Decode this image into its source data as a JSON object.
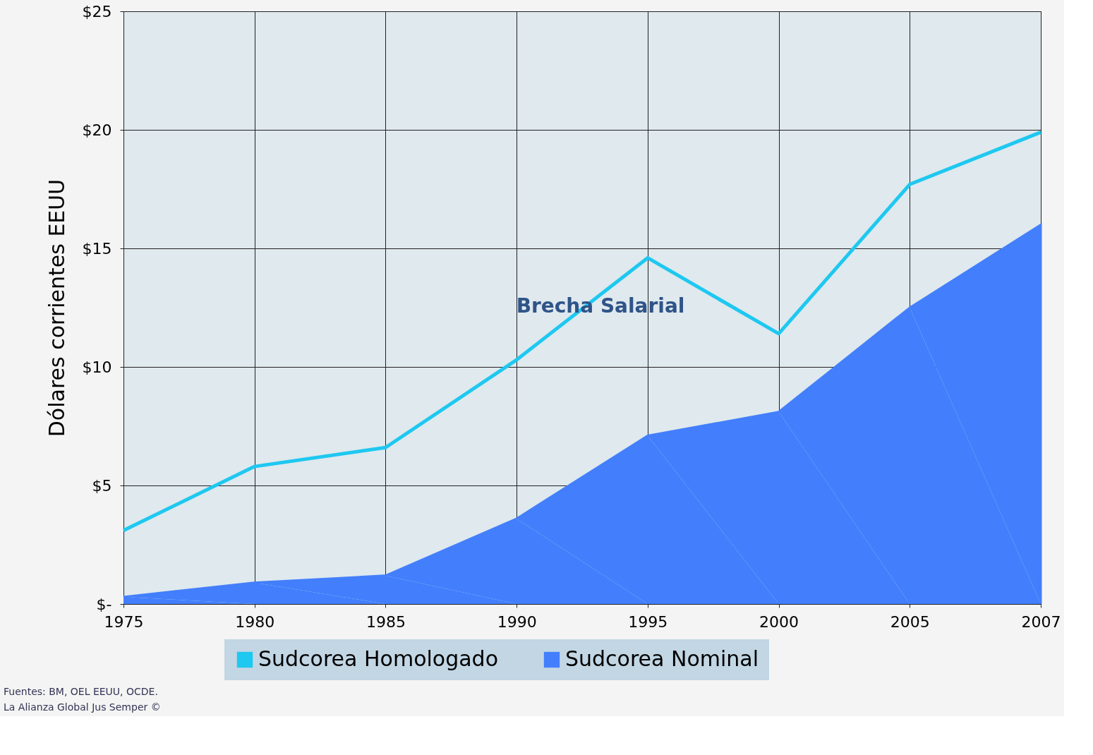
{
  "chart_data": {
    "type": "area",
    "ylabel": "Dólares corrientes EEUU",
    "categories": [
      "1975",
      "1980",
      "1985",
      "1990",
      "1995",
      "2000",
      "2005",
      "2007"
    ],
    "series": [
      {
        "name": "Sudcorea Homologado",
        "type": "line",
        "color": "#1ec8f0",
        "values": [
          3.1,
          5.8,
          6.6,
          10.3,
          14.6,
          11.4,
          17.7,
          19.9
        ]
      },
      {
        "name": "Sudcorea Nominal",
        "color": "#437ffc",
        "values": [
          0.3,
          0.9,
          1.2,
          3.6,
          7.1,
          8.1,
          12.5,
          16.0
        ]
      }
    ],
    "ylim": [
      0,
      25
    ],
    "yticks": [
      {
        "value": 0,
        "label": "$-"
      },
      {
        "value": 5,
        "label": "$5"
      },
      {
        "value": 10,
        "label": "$10"
      },
      {
        "value": 15,
        "label": "$15"
      },
      {
        "value": 20,
        "label": "$20"
      },
      {
        "value": 25,
        "label": "$25"
      }
    ],
    "grid": true,
    "legend": "bottom",
    "annotations": [
      "Brecha Salarial",
      "Fuentes: BM, OEL EEUU, OCDE.",
      "La Alianza Global Jus Semper ©"
    ]
  }
}
